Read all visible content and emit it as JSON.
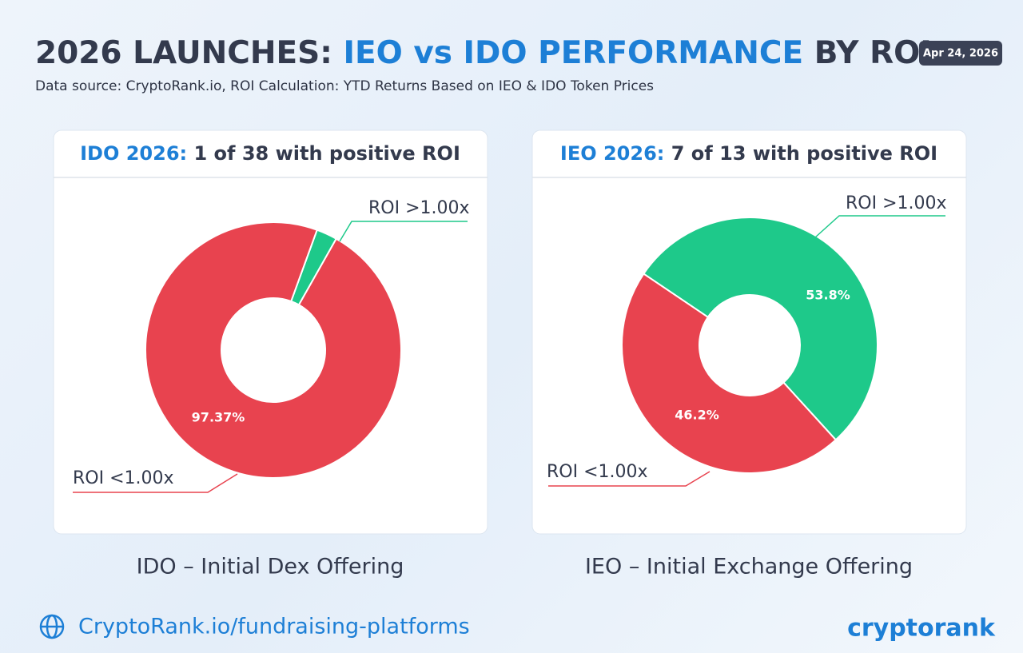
{
  "header": {
    "title_parts": [
      "2026 LAUNCHES: ",
      "IEO vs IDO PERFORMANCE",
      " BY ROI"
    ],
    "subtitle": "Data source: CryptoRank.io, ROI Calculation: YTD Returns Based on IEO & IDO Token Prices",
    "date": "Apr 24, 2026"
  },
  "chart_data": [
    {
      "type": "donut",
      "title_parts": [
        "IDO 2026:",
        " 1 of 38 with positive ROI"
      ],
      "categories": [
        "ROI >1.00x",
        "ROI <1.00x"
      ],
      "values": [
        2.63,
        97.37
      ],
      "value_labels": [
        null,
        "97.37%"
      ],
      "colors": [
        "#1ec98a",
        "#e8434f"
      ],
      "caption": "IDO – Initial Dex Offering"
    },
    {
      "type": "donut",
      "title_parts": [
        "IEO 2026:",
        " 7 of 13 with positive ROI"
      ],
      "categories": [
        "ROI >1.00x",
        "ROI <1.00x"
      ],
      "values": [
        53.8,
        46.2
      ],
      "value_labels": [
        "53.8%",
        "46.2%"
      ],
      "colors": [
        "#1ec98a",
        "#e8434f"
      ],
      "caption": "IEO – Initial Exchange Offering"
    }
  ],
  "footer": {
    "link": "CryptoRank.io/fundraising-platforms",
    "brand": "cryptorank"
  }
}
